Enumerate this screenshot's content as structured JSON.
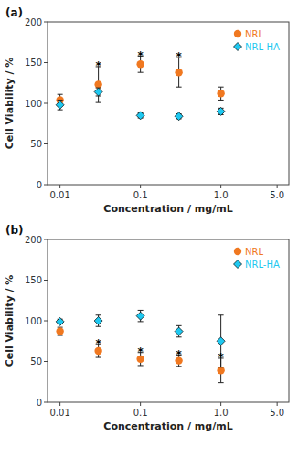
{
  "chart_data": [
    {
      "type": "scatter",
      "title": "(a)",
      "x_label": "Concentration / mg/mL",
      "y_label": "Cell Viability / %",
      "x": [
        0.01,
        0.03,
        0.1,
        0.3,
        1.0
      ],
      "series": [
        {
          "name": "NRL",
          "color": "#F07820",
          "marker": "circle",
          "values": [
            104,
            123,
            148,
            138,
            112
          ],
          "errors": [
            7,
            22,
            10,
            18,
            8
          ]
        },
        {
          "name": "NRL-HA",
          "color": "#1EC8F0",
          "marker": "diamond",
          "values": [
            98,
            114,
            85,
            84,
            90
          ],
          "errors": [
            6,
            5,
            3,
            3,
            4
          ]
        }
      ],
      "annotations": [
        {
          "text": "*",
          "x": 0.03,
          "y": 147
        },
        {
          "text": "*",
          "x": 0.1,
          "y": 160
        },
        {
          "text": "*",
          "x": 0.3,
          "y": 158
        }
      ],
      "log": "x",
      "xlim": [
        0.007,
        7.0
      ],
      "xticks": [
        0.01,
        0.1,
        {
          "value": 1.0,
          "label": "1.0"
        },
        {
          "value": 5.0,
          "label": "5.0"
        }
      ],
      "ylim": [
        0,
        200
      ],
      "yticks": [
        0,
        50,
        100,
        150,
        200
      ],
      "legend": "upper right",
      "grid": false
    },
    {
      "type": "scatter",
      "title": "(b)",
      "x_label": "Concentration / mg/mL",
      "y_label": "Cell Viability / %",
      "x": [
        0.01,
        0.03,
        0.1,
        0.3,
        1.0
      ],
      "series": [
        {
          "name": "NRL",
          "color": "#F07820",
          "marker": "circle",
          "values": [
            87,
            63,
            53,
            51,
            39
          ],
          "errors": [
            5,
            8,
            8,
            7,
            15
          ]
        },
        {
          "name": "NRL-HA",
          "color": "#1EC8F0",
          "marker": "diamond",
          "values": [
            99,
            100,
            106,
            87,
            75
          ],
          "errors": [
            3,
            7,
            7,
            7,
            32
          ]
        }
      ],
      "annotations": [
        {
          "text": "*",
          "x": 0.03,
          "y": 73
        },
        {
          "text": "*",
          "x": 0.1,
          "y": 63
        },
        {
          "text": "*",
          "x": 0.3,
          "y": 60
        },
        {
          "text": "*",
          "x": 1.0,
          "y": 56
        }
      ],
      "log": "x",
      "xlim": [
        0.007,
        7.0
      ],
      "xticks": [
        0.01,
        0.1,
        {
          "value": 1.0,
          "label": "1.0"
        },
        {
          "value": 5.0,
          "label": "5.0"
        }
      ],
      "ylim": [
        0,
        200
      ],
      "yticks": [
        0,
        50,
        100,
        150,
        200
      ],
      "legend": "upper right",
      "grid": false
    }
  ]
}
